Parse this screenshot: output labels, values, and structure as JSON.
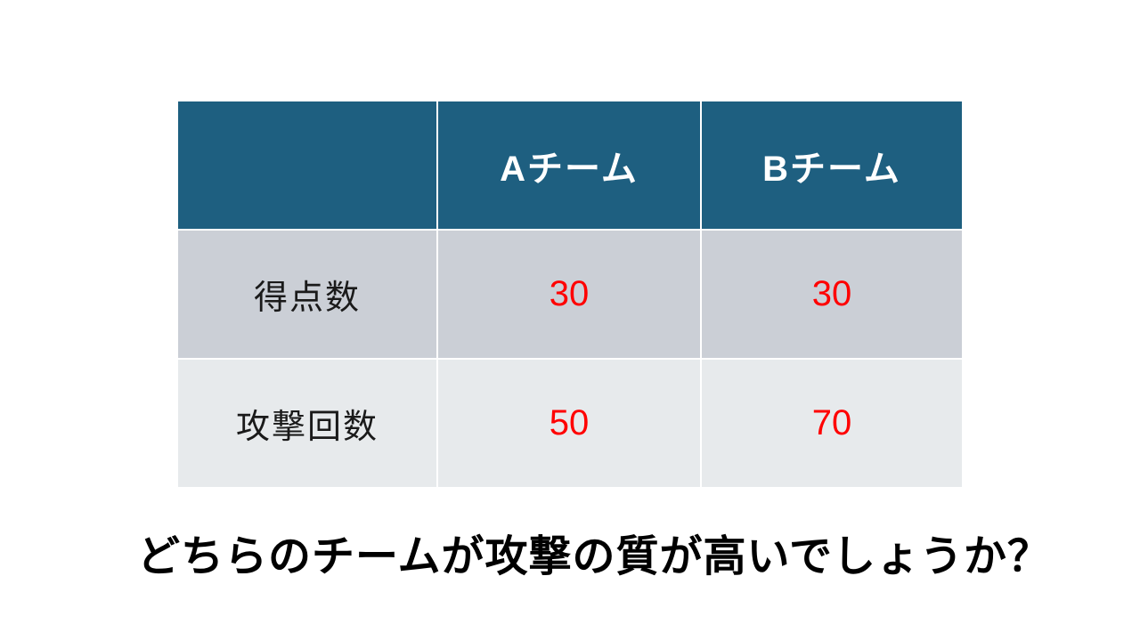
{
  "table": {
    "corner_label": "",
    "columns": [
      "Aチーム",
      "Bチーム"
    ],
    "rows": [
      {
        "label": "得点数",
        "values": [
          "30",
          "30"
        ]
      },
      {
        "label": "攻撃回数",
        "values": [
          "50",
          "70"
        ]
      }
    ]
  },
  "slide": {
    "question": "どちらのチームが攻撃の質が高いでしょうか？"
  },
  "colors": {
    "header_bg": "#1E5F80",
    "header_text": "#FFFFFF",
    "row_odd_bg": "#CBCFD6",
    "row_even_bg": "#E7EAEC",
    "label_text": "#1A1A1A",
    "value_text": "#FF0000",
    "question_text": "#000000"
  }
}
